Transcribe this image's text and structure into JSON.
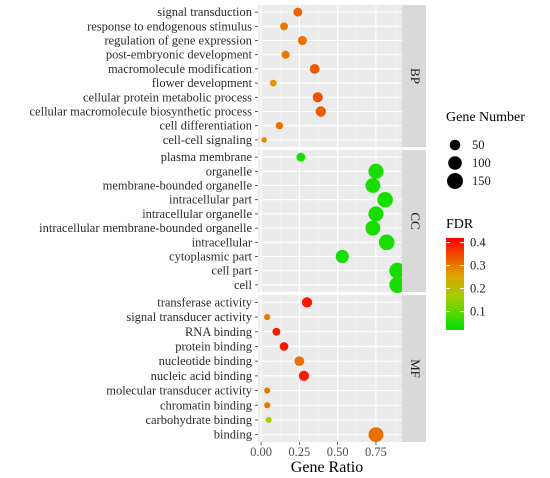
{
  "chart_data": {
    "type": "scatter",
    "xlabel": "Gene Ratio",
    "ylabel": "",
    "xlim": [
      -0.02,
      0.92
    ],
    "x_ticks": [
      "0.00",
      "0.25",
      "0.50",
      "0.75"
    ],
    "x_tick_values": [
      0,
      0.25,
      0.5,
      0.75
    ],
    "grid": true,
    "legend_position": "right",
    "size_legend": {
      "title": "Gene Number",
      "values": [
        50,
        100,
        150
      ]
    },
    "color_legend": {
      "title": "FDR",
      "range": [
        0.02,
        0.42
      ],
      "ticks": [
        "0.4",
        "0.3",
        "0.2",
        "0.1"
      ],
      "tick_values": [
        0.4,
        0.3,
        0.2,
        0.1
      ],
      "colors": [
        "#00e000",
        "#ff0000"
      ]
    },
    "facets": [
      {
        "label": "BP",
        "terms": [
          {
            "term": "signal transduction",
            "gene_ratio": 0.24,
            "count": 30,
            "fdr": 0.32
          },
          {
            "term": "response to endogenous stimulus",
            "gene_ratio": 0.15,
            "count": 20,
            "fdr": 0.3
          },
          {
            "term": "regulation of gene expression",
            "gene_ratio": 0.27,
            "count": 32,
            "fdr": 0.31
          },
          {
            "term": "post-embryonic development",
            "gene_ratio": 0.16,
            "count": 22,
            "fdr": 0.3
          },
          {
            "term": "macromolecule modification",
            "gene_ratio": 0.35,
            "count": 40,
            "fdr": 0.33
          },
          {
            "term": "flower development",
            "gene_ratio": 0.08,
            "count": 12,
            "fdr": 0.27
          },
          {
            "term": "cellular protein metabolic process",
            "gene_ratio": 0.37,
            "count": 45,
            "fdr": 0.34
          },
          {
            "term": "cellular macromolecule biosynthetic process",
            "gene_ratio": 0.39,
            "count": 48,
            "fdr": 0.33
          },
          {
            "term": "cell differentiation",
            "gene_ratio": 0.12,
            "count": 16,
            "fdr": 0.31
          },
          {
            "term": "cell-cell signaling",
            "gene_ratio": 0.02,
            "count": 5,
            "fdr": 0.28
          }
        ]
      },
      {
        "label": "CC",
        "terms": [
          {
            "term": "plasma membrane",
            "gene_ratio": 0.26,
            "count": 30,
            "fdr": 0.04
          },
          {
            "term": "organelle",
            "gene_ratio": 0.75,
            "count": 130,
            "fdr": 0.04
          },
          {
            "term": "membrane-bounded organelle",
            "gene_ratio": 0.73,
            "count": 125,
            "fdr": 0.04
          },
          {
            "term": "intracellular part",
            "gene_ratio": 0.81,
            "count": 140,
            "fdr": 0.04
          },
          {
            "term": "intracellular organelle",
            "gene_ratio": 0.75,
            "count": 130,
            "fdr": 0.04
          },
          {
            "term": "intracellular membrane-bounded organelle",
            "gene_ratio": 0.73,
            "count": 125,
            "fdr": 0.04
          },
          {
            "term": "intracellular",
            "gene_ratio": 0.82,
            "count": 142,
            "fdr": 0.04
          },
          {
            "term": "cytoplasmic part",
            "gene_ratio": 0.53,
            "count": 92,
            "fdr": 0.04
          },
          {
            "term": "cell part",
            "gene_ratio": 0.89,
            "count": 155,
            "fdr": 0.04
          },
          {
            "term": "cell",
            "gene_ratio": 0.89,
            "count": 155,
            "fdr": 0.04
          }
        ]
      },
      {
        "label": "MF",
        "terms": [
          {
            "term": "transferase activity",
            "gene_ratio": 0.3,
            "count": 45,
            "fdr": 0.4
          },
          {
            "term": "signal transducer activity",
            "gene_ratio": 0.04,
            "count": 8,
            "fdr": 0.3
          },
          {
            "term": "RNA binding",
            "gene_ratio": 0.1,
            "count": 20,
            "fdr": 0.4
          },
          {
            "term": "protein binding",
            "gene_ratio": 0.15,
            "count": 28,
            "fdr": 0.4
          },
          {
            "term": "nucleotide binding",
            "gene_ratio": 0.25,
            "count": 40,
            "fdr": 0.31
          },
          {
            "term": "nucleic acid binding",
            "gene_ratio": 0.28,
            "count": 45,
            "fdr": 0.39
          },
          {
            "term": "molecular transducer activity",
            "gene_ratio": 0.04,
            "count": 8,
            "fdr": 0.3
          },
          {
            "term": "chromatin binding",
            "gene_ratio": 0.04,
            "count": 8,
            "fdr": 0.3
          },
          {
            "term": "carbohydrate binding",
            "gene_ratio": 0.05,
            "count": 8,
            "fdr": 0.16
          },
          {
            "term": "binding",
            "gene_ratio": 0.75,
            "count": 125,
            "fdr": 0.31
          }
        ]
      }
    ]
  }
}
